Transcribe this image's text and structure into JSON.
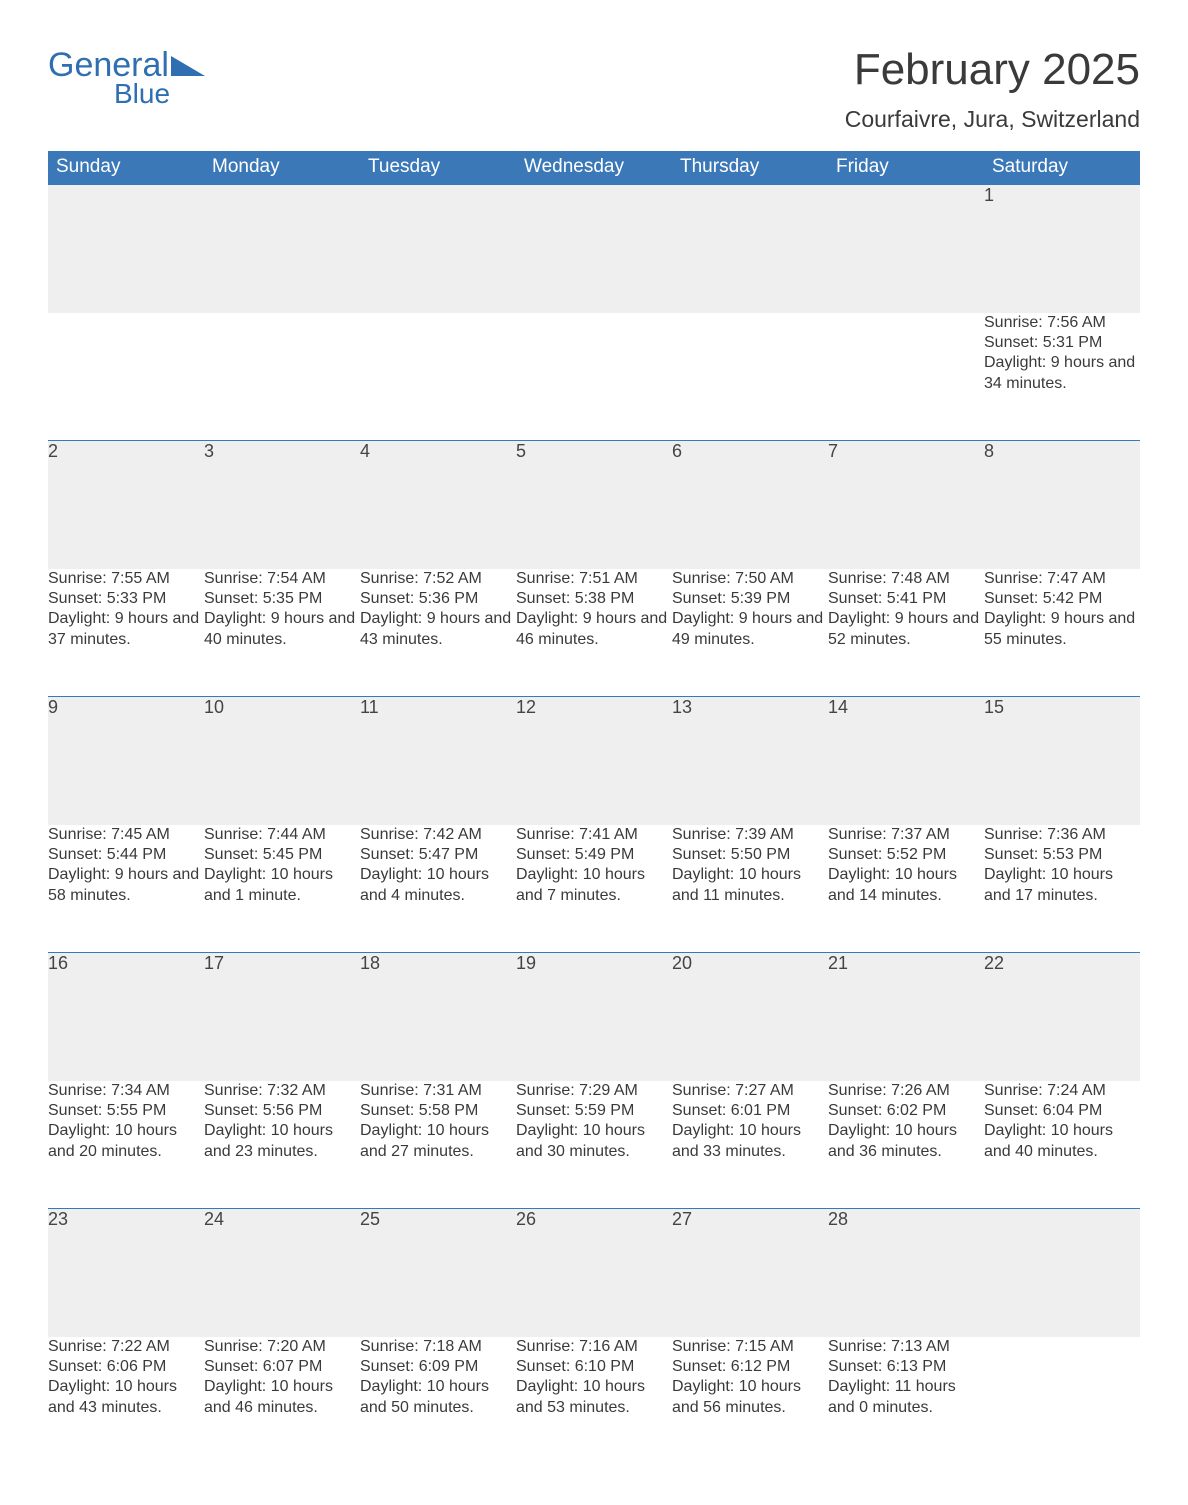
{
  "logo": {
    "part1": "General",
    "part2": "Blue",
    "color": "#2f6fb1"
  },
  "title": "February 2025",
  "location": "Courfaivre, Jura, Switzerland",
  "header_bg": "#3b78b8",
  "header_fg": "#ffffff",
  "daybar_bg": "#efefef",
  "text_color": "#3a3a3a",
  "weekdays": [
    "Sunday",
    "Monday",
    "Tuesday",
    "Wednesday",
    "Thursday",
    "Friday",
    "Saturday"
  ],
  "weeks": [
    [
      null,
      null,
      null,
      null,
      null,
      null,
      {
        "n": "1",
        "sunrise": "7:56 AM",
        "sunset": "5:31 PM",
        "daylight": "9 hours and 34 minutes."
      }
    ],
    [
      {
        "n": "2",
        "sunrise": "7:55 AM",
        "sunset": "5:33 PM",
        "daylight": "9 hours and 37 minutes."
      },
      {
        "n": "3",
        "sunrise": "7:54 AM",
        "sunset": "5:35 PM",
        "daylight": "9 hours and 40 minutes."
      },
      {
        "n": "4",
        "sunrise": "7:52 AM",
        "sunset": "5:36 PM",
        "daylight": "9 hours and 43 minutes."
      },
      {
        "n": "5",
        "sunrise": "7:51 AM",
        "sunset": "5:38 PM",
        "daylight": "9 hours and 46 minutes."
      },
      {
        "n": "6",
        "sunrise": "7:50 AM",
        "sunset": "5:39 PM",
        "daylight": "9 hours and 49 minutes."
      },
      {
        "n": "7",
        "sunrise": "7:48 AM",
        "sunset": "5:41 PM",
        "daylight": "9 hours and 52 minutes."
      },
      {
        "n": "8",
        "sunrise": "7:47 AM",
        "sunset": "5:42 PM",
        "daylight": "9 hours and 55 minutes."
      }
    ],
    [
      {
        "n": "9",
        "sunrise": "7:45 AM",
        "sunset": "5:44 PM",
        "daylight": "9 hours and 58 minutes."
      },
      {
        "n": "10",
        "sunrise": "7:44 AM",
        "sunset": "5:45 PM",
        "daylight": "10 hours and 1 minute."
      },
      {
        "n": "11",
        "sunrise": "7:42 AM",
        "sunset": "5:47 PM",
        "daylight": "10 hours and 4 minutes."
      },
      {
        "n": "12",
        "sunrise": "7:41 AM",
        "sunset": "5:49 PM",
        "daylight": "10 hours and 7 minutes."
      },
      {
        "n": "13",
        "sunrise": "7:39 AM",
        "sunset": "5:50 PM",
        "daylight": "10 hours and 11 minutes."
      },
      {
        "n": "14",
        "sunrise": "7:37 AM",
        "sunset": "5:52 PM",
        "daylight": "10 hours and 14 minutes."
      },
      {
        "n": "15",
        "sunrise": "7:36 AM",
        "sunset": "5:53 PM",
        "daylight": "10 hours and 17 minutes."
      }
    ],
    [
      {
        "n": "16",
        "sunrise": "7:34 AM",
        "sunset": "5:55 PM",
        "daylight": "10 hours and 20 minutes."
      },
      {
        "n": "17",
        "sunrise": "7:32 AM",
        "sunset": "5:56 PM",
        "daylight": "10 hours and 23 minutes."
      },
      {
        "n": "18",
        "sunrise": "7:31 AM",
        "sunset": "5:58 PM",
        "daylight": "10 hours and 27 minutes."
      },
      {
        "n": "19",
        "sunrise": "7:29 AM",
        "sunset": "5:59 PM",
        "daylight": "10 hours and 30 minutes."
      },
      {
        "n": "20",
        "sunrise": "7:27 AM",
        "sunset": "6:01 PM",
        "daylight": "10 hours and 33 minutes."
      },
      {
        "n": "21",
        "sunrise": "7:26 AM",
        "sunset": "6:02 PM",
        "daylight": "10 hours and 36 minutes."
      },
      {
        "n": "22",
        "sunrise": "7:24 AM",
        "sunset": "6:04 PM",
        "daylight": "10 hours and 40 minutes."
      }
    ],
    [
      {
        "n": "23",
        "sunrise": "7:22 AM",
        "sunset": "6:06 PM",
        "daylight": "10 hours and 43 minutes."
      },
      {
        "n": "24",
        "sunrise": "7:20 AM",
        "sunset": "6:07 PM",
        "daylight": "10 hours and 46 minutes."
      },
      {
        "n": "25",
        "sunrise": "7:18 AM",
        "sunset": "6:09 PM",
        "daylight": "10 hours and 50 minutes."
      },
      {
        "n": "26",
        "sunrise": "7:16 AM",
        "sunset": "6:10 PM",
        "daylight": "10 hours and 53 minutes."
      },
      {
        "n": "27",
        "sunrise": "7:15 AM",
        "sunset": "6:12 PM",
        "daylight": "10 hours and 56 minutes."
      },
      {
        "n": "28",
        "sunrise": "7:13 AM",
        "sunset": "6:13 PM",
        "daylight": "11 hours and 0 minutes."
      },
      null
    ]
  ],
  "labels": {
    "sunrise": "Sunrise: ",
    "sunset": "Sunset: ",
    "daylight": "Daylight: "
  }
}
